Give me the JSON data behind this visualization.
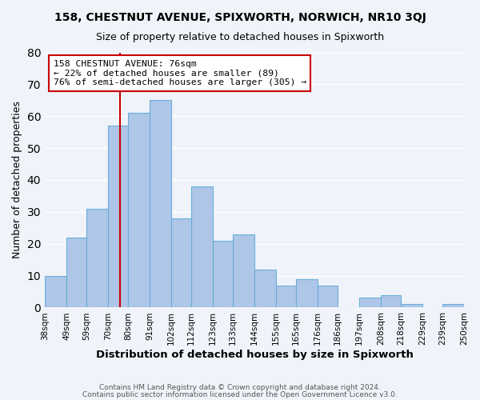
{
  "title": "158, CHESTNUT AVENUE, SPIXWORTH, NORWICH, NR10 3QJ",
  "subtitle": "Size of property relative to detached houses in Spixworth",
  "xlabel": "Distribution of detached houses by size in Spixworth",
  "ylabel": "Number of detached properties",
  "bar_labels": [
    "38sqm",
    "49sqm",
    "59sqm",
    "70sqm",
    "80sqm",
    "91sqm",
    "102sqm",
    "112sqm",
    "123sqm",
    "133sqm",
    "144sqm",
    "155sqm",
    "165sqm",
    "176sqm",
    "186sqm",
    "197sqm",
    "208sqm",
    "218sqm",
    "229sqm",
    "239sqm",
    "250sqm"
  ],
  "bar_values": [
    10,
    22,
    31,
    57,
    61,
    65,
    28,
    38,
    21,
    23,
    12,
    7,
    9,
    7,
    0,
    3,
    4,
    1,
    0,
    1
  ],
  "bar_color": "#aec6e8",
  "bar_edge_color": "#6aafd6",
  "ylim": [
    0,
    80
  ],
  "yticks": [
    0,
    10,
    20,
    30,
    40,
    50,
    60,
    70,
    80
  ],
  "annotation_title": "158 CHESTNUT AVENUE: 76sqm",
  "annotation_line1": "← 22% of detached houses are smaller (89)",
  "annotation_line2": "76% of semi-detached houses are larger (305) →",
  "annotation_box_color": "#ffffff",
  "annotation_box_edge": "#cc0000",
  "vline_color": "#cc0000",
  "vline_x": 76,
  "footer1": "Contains HM Land Registry data © Crown copyright and database right 2024.",
  "footer2": "Contains public sector information licensed under the Open Government Licence v3.0.",
  "background_color": "#f0f4fa",
  "grid_color": "#ffffff"
}
